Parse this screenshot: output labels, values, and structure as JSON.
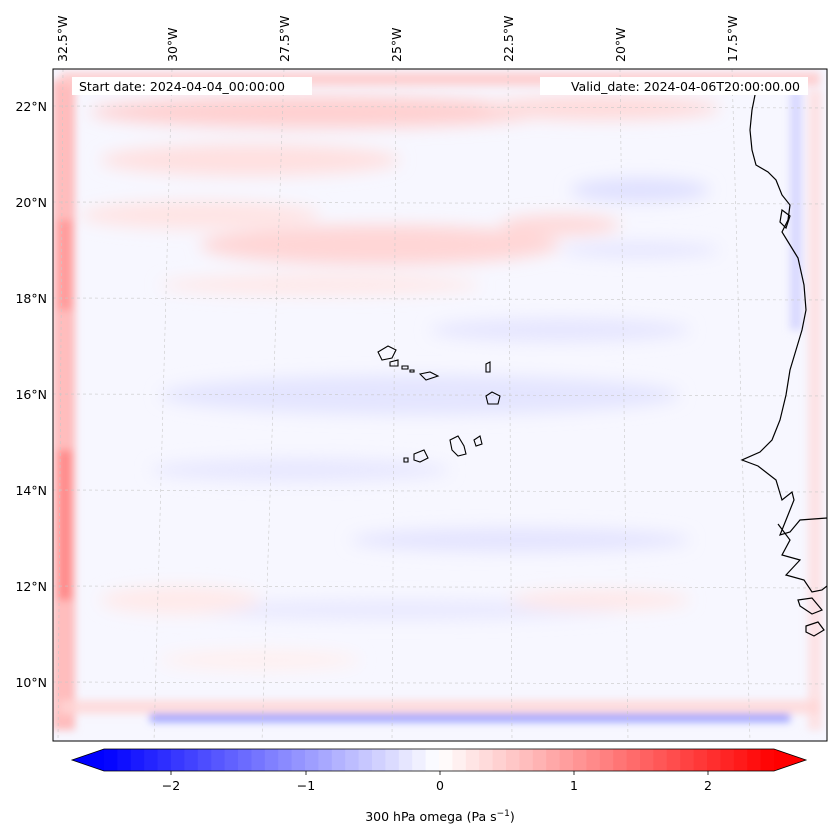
{
  "map": {
    "start_date": "Start date: 2024-04-04_00:00:00",
    "valid_date": "Valid_date: 2024-04-06T20:00:00.00",
    "lon_labels": [
      "32.5°W",
      "30°W",
      "27.5°W",
      "25°W",
      "22.5°W",
      "20°W",
      "17.5°W"
    ],
    "lat_labels": [
      "22°N",
      "20°N",
      "18°N",
      "16°N",
      "14°N",
      "12°N",
      "10°N"
    ]
  },
  "colorbar": {
    "label": "300 hPa omega (Pa s",
    "label_exponent": "−1",
    "label_close": ")",
    "tick_labels": [
      "−2",
      "−1",
      "0",
      "1",
      "2"
    ],
    "range": [
      -2.5,
      2.5
    ],
    "colormap": "bwr",
    "extend": "both"
  },
  "colors": {
    "negative": "#0000ff",
    "neutral": "#ffffff",
    "positive": "#ff0000",
    "coastline": "#000000"
  }
}
